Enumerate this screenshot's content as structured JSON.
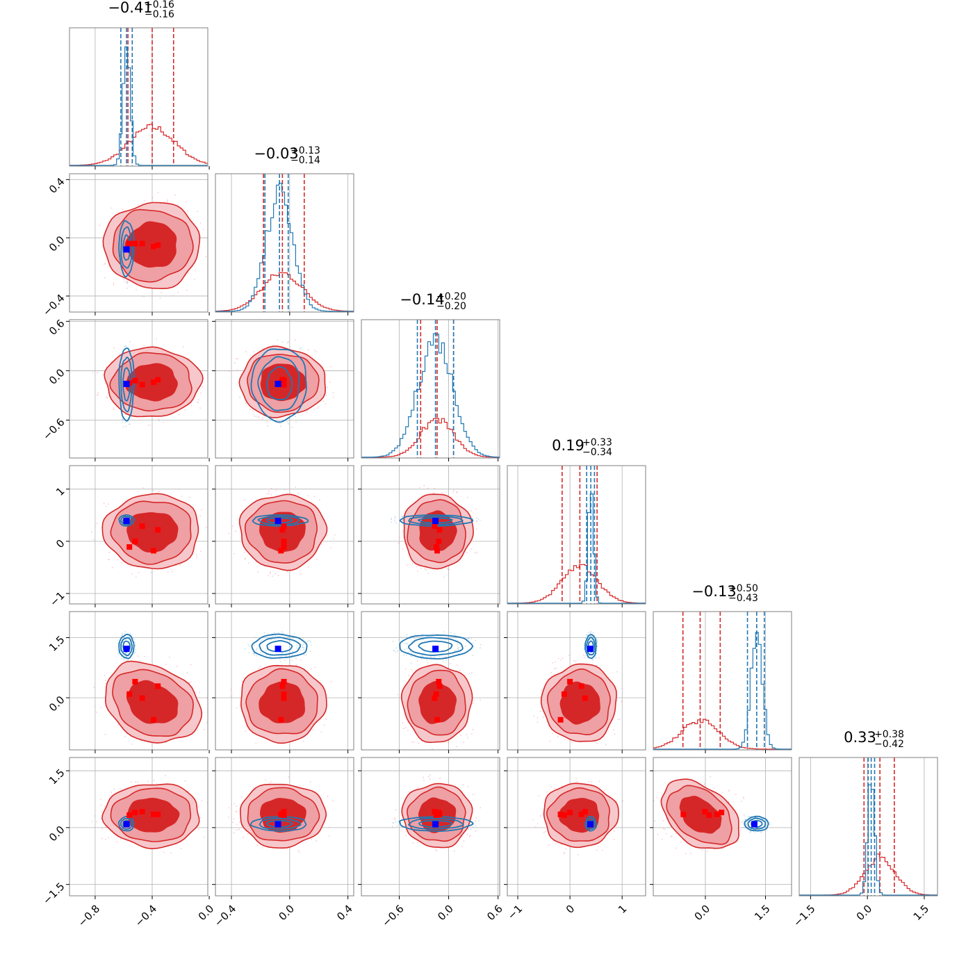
{
  "colors": {
    "posterior_a": "#d62728",
    "posterior_a_fill_mid": "#eea0a4",
    "posterior_b": "#1f77b4",
    "truth_marker": "#0000ff",
    "sample_marker": "#ff0000",
    "grid": "#b0b0b0"
  },
  "chart_data": {
    "type": "corner",
    "n_params": 6,
    "grid": true,
    "titles": [
      {
        "value": "−0.41",
        "plus": "+0.16",
        "minus": "−0.16"
      },
      {
        "value": "−0.03",
        "plus": "+0.13",
        "minus": "−0.14"
      },
      {
        "value": "−0.14",
        "plus": "+0.20",
        "minus": "−0.20"
      },
      {
        "value": "0.19",
        "plus": "+0.33",
        "minus": "−0.34"
      },
      {
        "value": "−0.13",
        "plus": "+0.50",
        "minus": "−0.43"
      },
      {
        "value": "0.33",
        "plus": "+0.38",
        "minus": "−0.42"
      }
    ],
    "ranges": [
      [
        -0.98,
        -0.01
      ],
      [
        -0.51,
        0.44
      ],
      [
        -1.06,
        0.62
      ],
      [
        -1.2,
        1.45
      ],
      [
        -1.3,
        2.15
      ],
      [
        -1.8,
        1.85
      ]
    ],
    "ticks": [
      {
        "values": [
          -0.8,
          -0.4,
          0.0
        ],
        "labels": [
          "−0.8",
          "−0.4",
          "0.0"
        ]
      },
      {
        "values": [
          -0.4,
          0.0,
          0.4
        ],
        "labels": [
          "−0.4",
          "0.0",
          "0.4"
        ]
      },
      {
        "values": [
          -0.6,
          0.0,
          0.6
        ],
        "labels": [
          "−0.6",
          "0.0",
          "0.6"
        ]
      },
      {
        "values": [
          -1,
          0,
          1
        ],
        "labels": [
          "−1",
          "0",
          "1"
        ]
      },
      {
        "values": [
          0.0,
          1.5
        ],
        "labels": [
          "0.0",
          "1.5"
        ]
      },
      {
        "values": [
          -1.5,
          0.0,
          1.5
        ],
        "labels": [
          "−1.5",
          "0.0",
          "1.5"
        ]
      }
    ],
    "y_ticks_row": [
      null,
      {
        "values": [
          0.4,
          0.0,
          -0.4
        ],
        "labels": [
          "0.4",
          "0.0",
          "−0.4"
        ]
      },
      {
        "values": [
          0.6,
          0.0,
          -0.6
        ],
        "labels": [
          "0.6",
          "0.0",
          "−0.6"
        ]
      },
      {
        "values": [
          1,
          0,
          -1
        ],
        "labels": [
          "1",
          "0",
          "−1"
        ]
      },
      {
        "values": [
          1.5,
          0.0
        ],
        "labels": [
          "1.5",
          "0.0"
        ]
      },
      {
        "values": [
          1.5,
          0.0,
          -1.5
        ],
        "labels": [
          "1.5",
          "0.0",
          "−1.5"
        ]
      }
    ],
    "series": [
      {
        "color_key": "posterior_a",
        "means": [
          -0.4,
          -0.05,
          -0.14,
          0.19,
          -0.13,
          0.33
        ],
        "sds": [
          0.16,
          0.14,
          0.2,
          0.34,
          0.46,
          0.4
        ],
        "quantiles": [
          [
            -0.57,
            -0.25
          ],
          [
            -0.18,
            0.1
          ],
          [
            -0.34,
            0.06
          ],
          [
            -0.15,
            0.52
          ],
          [
            -0.56,
            0.37
          ],
          [
            -0.09,
            0.71
          ]
        ],
        "filled_contours": true
      },
      {
        "color_key": "posterior_b",
        "means": [
          -0.58,
          -0.07,
          -0.16,
          0.4,
          1.28,
          0.1
        ],
        "sds": [
          0.025,
          0.09,
          0.21,
          0.05,
          0.14,
          0.09
        ],
        "quantiles": [
          [
            -0.62,
            -0.54
          ],
          [
            -0.17,
            -0.01
          ],
          [
            -0.38,
            0.06
          ],
          [
            0.32,
            0.47
          ],
          [
            1.05,
            1.47
          ],
          [
            0.02,
            0.19
          ]
        ],
        "filled_contours": false
      }
    ],
    "truth": [
      -0.58,
      -0.08,
      -0.16,
      0.39,
      1.22,
      0.09
    ],
    "markers": [
      [
        -0.52,
        -0.04,
        -0.12,
        0.0,
        0.4,
        0.4
      ],
      [
        -0.47,
        -0.04,
        -0.17,
        0.29,
        -0.01,
        0.42
      ],
      [
        -0.36,
        -0.05,
        -0.11,
        0.22,
        0.29,
        0.35
      ],
      [
        -0.56,
        -0.04,
        -0.15,
        -0.11,
        0.09,
        0.33
      ],
      [
        -0.39,
        -0.06,
        -0.14,
        -0.18,
        -0.55,
        0.35
      ]
    ]
  }
}
